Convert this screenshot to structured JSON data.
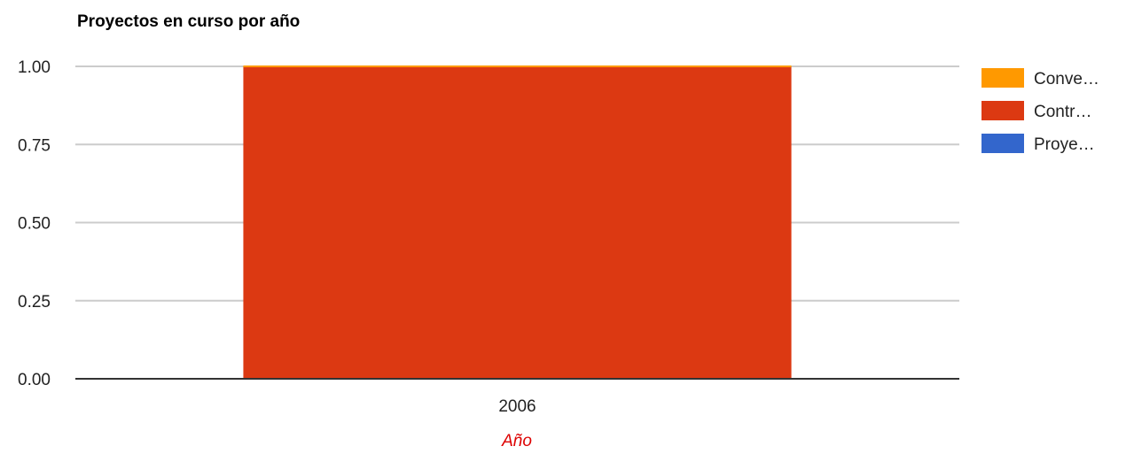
{
  "chart_data": {
    "type": "bar",
    "stacked": true,
    "title": "Proyectos en curso por año",
    "xlabel": "Año",
    "ylabel": "",
    "categories": [
      "2006"
    ],
    "ylim": [
      0,
      1
    ],
    "yticks": [
      "0.00",
      "0.25",
      "0.50",
      "0.75",
      "1.00"
    ],
    "grid": true,
    "legend_position": "right",
    "series": [
      {
        "name": "Proye…",
        "values": [
          0
        ],
        "color": "#3366cc"
      },
      {
        "name": "Contr…",
        "values": [
          1
        ],
        "color": "#dc3912"
      },
      {
        "name": "Conve…",
        "values": [
          0
        ],
        "color": "#ff9900"
      }
    ],
    "legend_order": [
      "Conve…",
      "Contr…",
      "Proye…"
    ],
    "xlabel_color": "#dd0000"
  }
}
